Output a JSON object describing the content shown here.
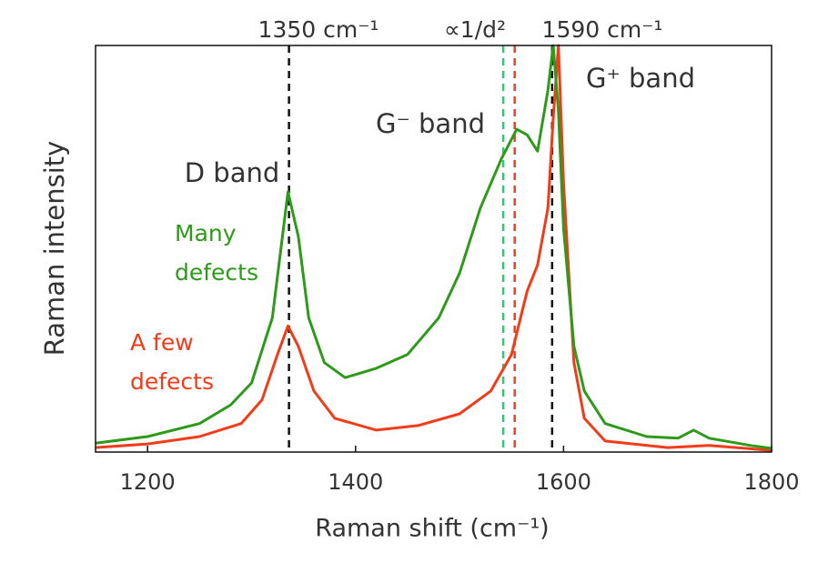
{
  "chart_data": {
    "type": "line",
    "xlabel": "Raman shift (cm⁻¹)",
    "ylabel": "Raman intensity",
    "xlim": [
      1150,
      1800
    ],
    "ylim": [
      0,
      100
    ],
    "xticks": [
      1200,
      1400,
      1600,
      1800
    ],
    "series": [
      {
        "name": "Many defects",
        "color": "#2e9a1a",
        "x": [
          1150,
          1200,
          1250,
          1280,
          1300,
          1320,
          1335,
          1345,
          1355,
          1370,
          1390,
          1420,
          1450,
          1480,
          1500,
          1520,
          1540,
          1555,
          1565,
          1575,
          1585,
          1590,
          1595,
          1600,
          1610,
          1620,
          1640,
          1680,
          1710,
          1725,
          1740,
          1780,
          1800
        ],
        "values": [
          2.2,
          3.8,
          7,
          11.6,
          17,
          33,
          64,
          53,
          33,
          22,
          18.3,
          20.6,
          24,
          33,
          44,
          60,
          72,
          79.4,
          78,
          74,
          89,
          100,
          84,
          55,
          26,
          15,
          7,
          3.8,
          3.4,
          5.4,
          3.4,
          1.6,
          0.9
        ]
      },
      {
        "name": "A few defects",
        "color": "#f03c18",
        "x": [
          1150,
          1200,
          1250,
          1290,
          1310,
          1325,
          1335,
          1345,
          1360,
          1380,
          1420,
          1460,
          1500,
          1530,
          1550,
          1565,
          1575,
          1585,
          1590,
          1595,
          1600,
          1610,
          1620,
          1640,
          1700,
          1740,
          1800
        ],
        "values": [
          1.1,
          2,
          3.8,
          7,
          12.8,
          24,
          31,
          26,
          15,
          8.3,
          5.4,
          6.5,
          9.4,
          15,
          24,
          39.6,
          46,
          60,
          82,
          100,
          66,
          22,
          8.3,
          2.7,
          1.1,
          1.6,
          0.4
        ]
      }
    ],
    "vlines": [
      {
        "x": 1336,
        "color": "#111111"
      },
      {
        "x": 1542,
        "color": "#33c47a"
      },
      {
        "x": 1553,
        "color": "#f04020"
      },
      {
        "x": 1589,
        "color": "#111111"
      }
    ],
    "annotations": [
      "1350 cm⁻¹",
      "∝1/d²",
      "1590 cm⁻¹",
      "G⁺ band",
      "G⁻ band",
      "D band"
    ]
  }
}
